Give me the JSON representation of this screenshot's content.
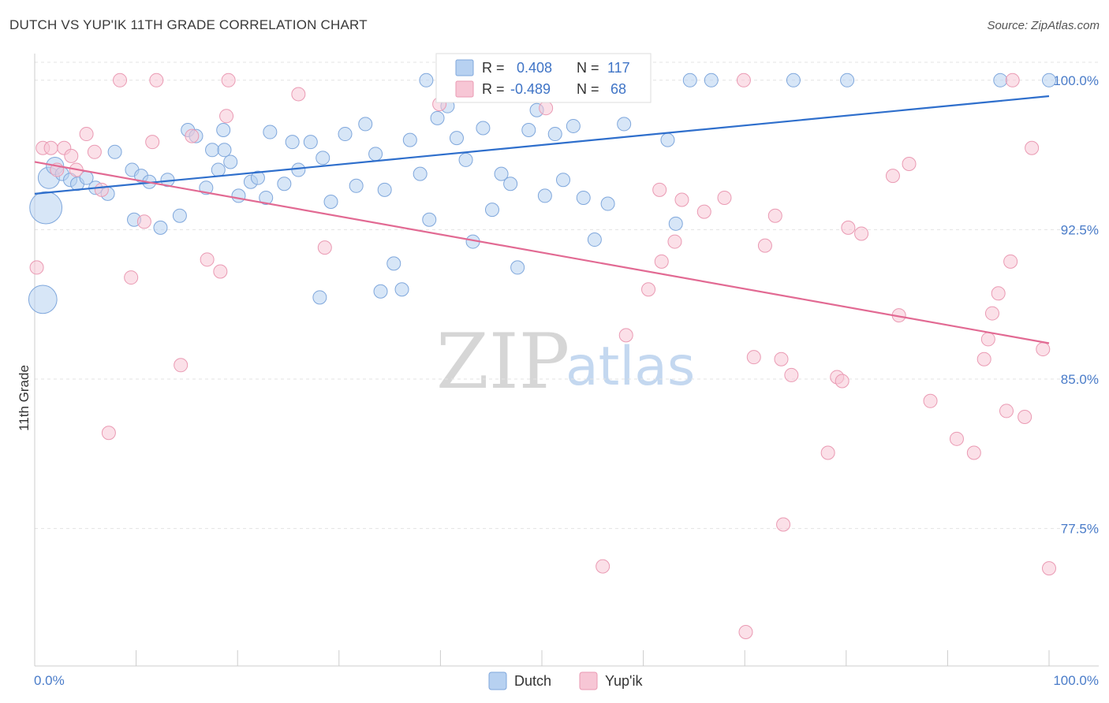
{
  "header": {
    "title": "DUTCH VS YUP'IK 11TH GRADE CORRELATION CHART",
    "source": "Source: ZipAtlas.com"
  },
  "watermark": {
    "zip": "ZIP",
    "atlas": "atlas"
  },
  "stats": {
    "r_label": "R =",
    "n_label": "N =",
    "dutch": {
      "r": "0.408",
      "n": "117"
    },
    "yupik": {
      "r": "-0.489",
      "n": "68"
    }
  },
  "legend": {
    "dutch": "Dutch",
    "yupik": "Yup'ik"
  },
  "colors": {
    "dutch_fill": "#b7d1f1",
    "dutch_stroke": "#7fa7dc",
    "dutch_line": "#2f6fcc",
    "yupik_fill": "#f7c6d5",
    "yupik_stroke": "#ea9ab3",
    "yupik_line": "#e26a93"
  },
  "chart_data": {
    "type": "scatter",
    "title": "DUTCH VS YUP'IK 11TH GRADE CORRELATION CHART",
    "xlabel": "",
    "ylabel": "11th Grade",
    "xlim": [
      0,
      100
    ],
    "ylim": [
      70.6,
      101.1
    ],
    "x_tick_labels": [
      "0.0%",
      "100.0%"
    ],
    "y_ticks": [
      {
        "value": 100.0,
        "label": "100.0%"
      },
      {
        "value": 92.5,
        "label": "92.5%"
      },
      {
        "value": 85.0,
        "label": "85.0%"
      },
      {
        "value": 77.5,
        "label": "77.5%"
      }
    ],
    "series": [
      {
        "name": "Dutch",
        "trend": {
          "x": [
            0,
            100
          ],
          "y": [
            94.3,
            99.2
          ]
        },
        "points": [
          {
            "x": 1.1,
            "y": 93.6,
            "size": 2.4
          },
          {
            "x": 0.8,
            "y": 89.0,
            "size": 2.1
          },
          {
            "x": 1.4,
            "y": 95.1,
            "size": 1.6
          },
          {
            "x": 2.0,
            "y": 95.7,
            "size": 1.3
          },
          {
            "x": 2.7,
            "y": 95.3
          },
          {
            "x": 3.5,
            "y": 95.0
          },
          {
            "x": 4.2,
            "y": 94.8
          },
          {
            "x": 5.1,
            "y": 95.1
          },
          {
            "x": 6.0,
            "y": 94.6
          },
          {
            "x": 7.2,
            "y": 94.3
          },
          {
            "x": 7.9,
            "y": 96.4
          },
          {
            "x": 9.6,
            "y": 95.5
          },
          {
            "x": 9.8,
            "y": 93.0
          },
          {
            "x": 10.5,
            "y": 95.2
          },
          {
            "x": 11.3,
            "y": 94.9
          },
          {
            "x": 12.4,
            "y": 92.6
          },
          {
            "x": 13.1,
            "y": 95.0
          },
          {
            "x": 14.3,
            "y": 93.2
          },
          {
            "x": 15.1,
            "y": 97.5
          },
          {
            "x": 15.9,
            "y": 97.2
          },
          {
            "x": 16.9,
            "y": 94.6
          },
          {
            "x": 17.5,
            "y": 96.5
          },
          {
            "x": 18.1,
            "y": 95.5
          },
          {
            "x": 18.6,
            "y": 97.5
          },
          {
            "x": 19.3,
            "y": 95.9
          },
          {
            "x": 20.1,
            "y": 94.2
          },
          {
            "x": 21.3,
            "y": 94.9
          },
          {
            "x": 22.0,
            "y": 95.1
          },
          {
            "x": 22.8,
            "y": 94.1
          },
          {
            "x": 23.2,
            "y": 97.4
          },
          {
            "x": 24.6,
            "y": 94.8
          },
          {
            "x": 25.4,
            "y": 96.9
          },
          {
            "x": 26.0,
            "y": 95.5
          },
          {
            "x": 27.2,
            "y": 96.9
          },
          {
            "x": 28.4,
            "y": 96.1
          },
          {
            "x": 29.2,
            "y": 93.9
          },
          {
            "x": 30.6,
            "y": 97.3
          },
          {
            "x": 31.7,
            "y": 94.7
          },
          {
            "x": 32.6,
            "y": 97.8
          },
          {
            "x": 33.6,
            "y": 96.3
          },
          {
            "x": 34.5,
            "y": 94.5
          },
          {
            "x": 35.4,
            "y": 90.8
          },
          {
            "x": 36.2,
            "y": 89.5
          },
          {
            "x": 37.0,
            "y": 97.0
          },
          {
            "x": 38.0,
            "y": 95.3
          },
          {
            "x": 38.6,
            "y": 100.0
          },
          {
            "x": 38.9,
            "y": 93.0
          },
          {
            "x": 39.7,
            "y": 98.1
          },
          {
            "x": 40.7,
            "y": 98.7
          },
          {
            "x": 41.6,
            "y": 97.1
          },
          {
            "x": 42.5,
            "y": 96.0
          },
          {
            "x": 43.2,
            "y": 91.9
          },
          {
            "x": 44.2,
            "y": 97.6
          },
          {
            "x": 45.1,
            "y": 93.5
          },
          {
            "x": 46.0,
            "y": 95.3
          },
          {
            "x": 46.9,
            "y": 94.8
          },
          {
            "x": 47.6,
            "y": 90.6
          },
          {
            "x": 48.7,
            "y": 97.5
          },
          {
            "x": 49.5,
            "y": 98.5
          },
          {
            "x": 50.3,
            "y": 94.2
          },
          {
            "x": 51.3,
            "y": 97.3
          },
          {
            "x": 52.1,
            "y": 95.0
          },
          {
            "x": 53.1,
            "y": 97.7
          },
          {
            "x": 54.1,
            "y": 94.1
          },
          {
            "x": 55.2,
            "y": 92.0
          },
          {
            "x": 56.5,
            "y": 93.8
          },
          {
            "x": 58.1,
            "y": 97.8
          },
          {
            "x": 59.6,
            "y": 100.0
          },
          {
            "x": 62.4,
            "y": 97.0
          },
          {
            "x": 63.2,
            "y": 92.8
          },
          {
            "x": 64.6,
            "y": 100.0
          },
          {
            "x": 66.7,
            "y": 100.0
          },
          {
            "x": 74.8,
            "y": 100.0
          },
          {
            "x": 80.1,
            "y": 100.0
          },
          {
            "x": 95.2,
            "y": 100.0
          },
          {
            "x": 100.0,
            "y": 100.0
          },
          {
            "x": 34.1,
            "y": 89.4
          },
          {
            "x": 28.1,
            "y": 89.1
          },
          {
            "x": 18.7,
            "y": 96.5
          }
        ]
      },
      {
        "name": "Yup'ik",
        "trend": {
          "x": [
            0,
            100
          ],
          "y": [
            95.9,
            86.8
          ]
        },
        "points": [
          {
            "x": 0.2,
            "y": 90.6
          },
          {
            "x": 0.8,
            "y": 96.6
          },
          {
            "x": 1.6,
            "y": 96.6
          },
          {
            "x": 2.2,
            "y": 95.5
          },
          {
            "x": 2.9,
            "y": 96.6
          },
          {
            "x": 3.6,
            "y": 96.2
          },
          {
            "x": 4.1,
            "y": 95.5
          },
          {
            "x": 5.1,
            "y": 97.3
          },
          {
            "x": 5.9,
            "y": 96.4
          },
          {
            "x": 6.6,
            "y": 94.5
          },
          {
            "x": 7.3,
            "y": 82.3
          },
          {
            "x": 8.4,
            "y": 100.0
          },
          {
            "x": 9.5,
            "y": 90.1
          },
          {
            "x": 10.8,
            "y": 92.9
          },
          {
            "x": 11.6,
            "y": 96.9
          },
          {
            "x": 12.0,
            "y": 100.0
          },
          {
            "x": 14.4,
            "y": 85.7
          },
          {
            "x": 15.5,
            "y": 97.2
          },
          {
            "x": 17.0,
            "y": 91.0
          },
          {
            "x": 18.3,
            "y": 90.4
          },
          {
            "x": 18.9,
            "y": 98.2
          },
          {
            "x": 19.1,
            "y": 100.0
          },
          {
            "x": 26.0,
            "y": 99.3
          },
          {
            "x": 28.6,
            "y": 91.6
          },
          {
            "x": 39.9,
            "y": 98.8
          },
          {
            "x": 40.5,
            "y": 100.0
          },
          {
            "x": 46.5,
            "y": 100.0
          },
          {
            "x": 50.4,
            "y": 98.6
          },
          {
            "x": 53.0,
            "y": 99.3
          },
          {
            "x": 56.0,
            "y": 75.6
          },
          {
            "x": 58.3,
            "y": 87.2
          },
          {
            "x": 60.0,
            "y": 100.0
          },
          {
            "x": 60.5,
            "y": 89.5
          },
          {
            "x": 61.6,
            "y": 94.5
          },
          {
            "x": 61.8,
            "y": 90.9
          },
          {
            "x": 63.1,
            "y": 91.9
          },
          {
            "x": 63.8,
            "y": 94.0
          },
          {
            "x": 66.0,
            "y": 93.4
          },
          {
            "x": 68.0,
            "y": 94.1
          },
          {
            "x": 69.9,
            "y": 100.0
          },
          {
            "x": 70.1,
            "y": 72.3
          },
          {
            "x": 70.9,
            "y": 86.1
          },
          {
            "x": 72.0,
            "y": 91.7
          },
          {
            "x": 73.0,
            "y": 93.2
          },
          {
            "x": 73.6,
            "y": 86.0
          },
          {
            "x": 73.8,
            "y": 77.7
          },
          {
            "x": 74.6,
            "y": 85.2
          },
          {
            "x": 78.2,
            "y": 81.3
          },
          {
            "x": 79.1,
            "y": 85.1
          },
          {
            "x": 79.6,
            "y": 84.9
          },
          {
            "x": 80.2,
            "y": 92.6
          },
          {
            "x": 81.5,
            "y": 92.3
          },
          {
            "x": 84.6,
            "y": 95.2
          },
          {
            "x": 85.2,
            "y": 88.2
          },
          {
            "x": 86.2,
            "y": 95.8
          },
          {
            "x": 88.3,
            "y": 83.9
          },
          {
            "x": 90.9,
            "y": 82.0
          },
          {
            "x": 92.6,
            "y": 81.3
          },
          {
            "x": 93.6,
            "y": 86.0
          },
          {
            "x": 94.0,
            "y": 87.0
          },
          {
            "x": 94.4,
            "y": 88.3
          },
          {
            "x": 95.0,
            "y": 89.3
          },
          {
            "x": 95.8,
            "y": 83.4
          },
          {
            "x": 96.2,
            "y": 90.9
          },
          {
            "x": 96.4,
            "y": 100.0
          },
          {
            "x": 97.6,
            "y": 83.1
          },
          {
            "x": 98.3,
            "y": 96.6
          },
          {
            "x": 99.4,
            "y": 86.5
          },
          {
            "x": 100.0,
            "y": 75.5
          }
        ]
      }
    ]
  }
}
